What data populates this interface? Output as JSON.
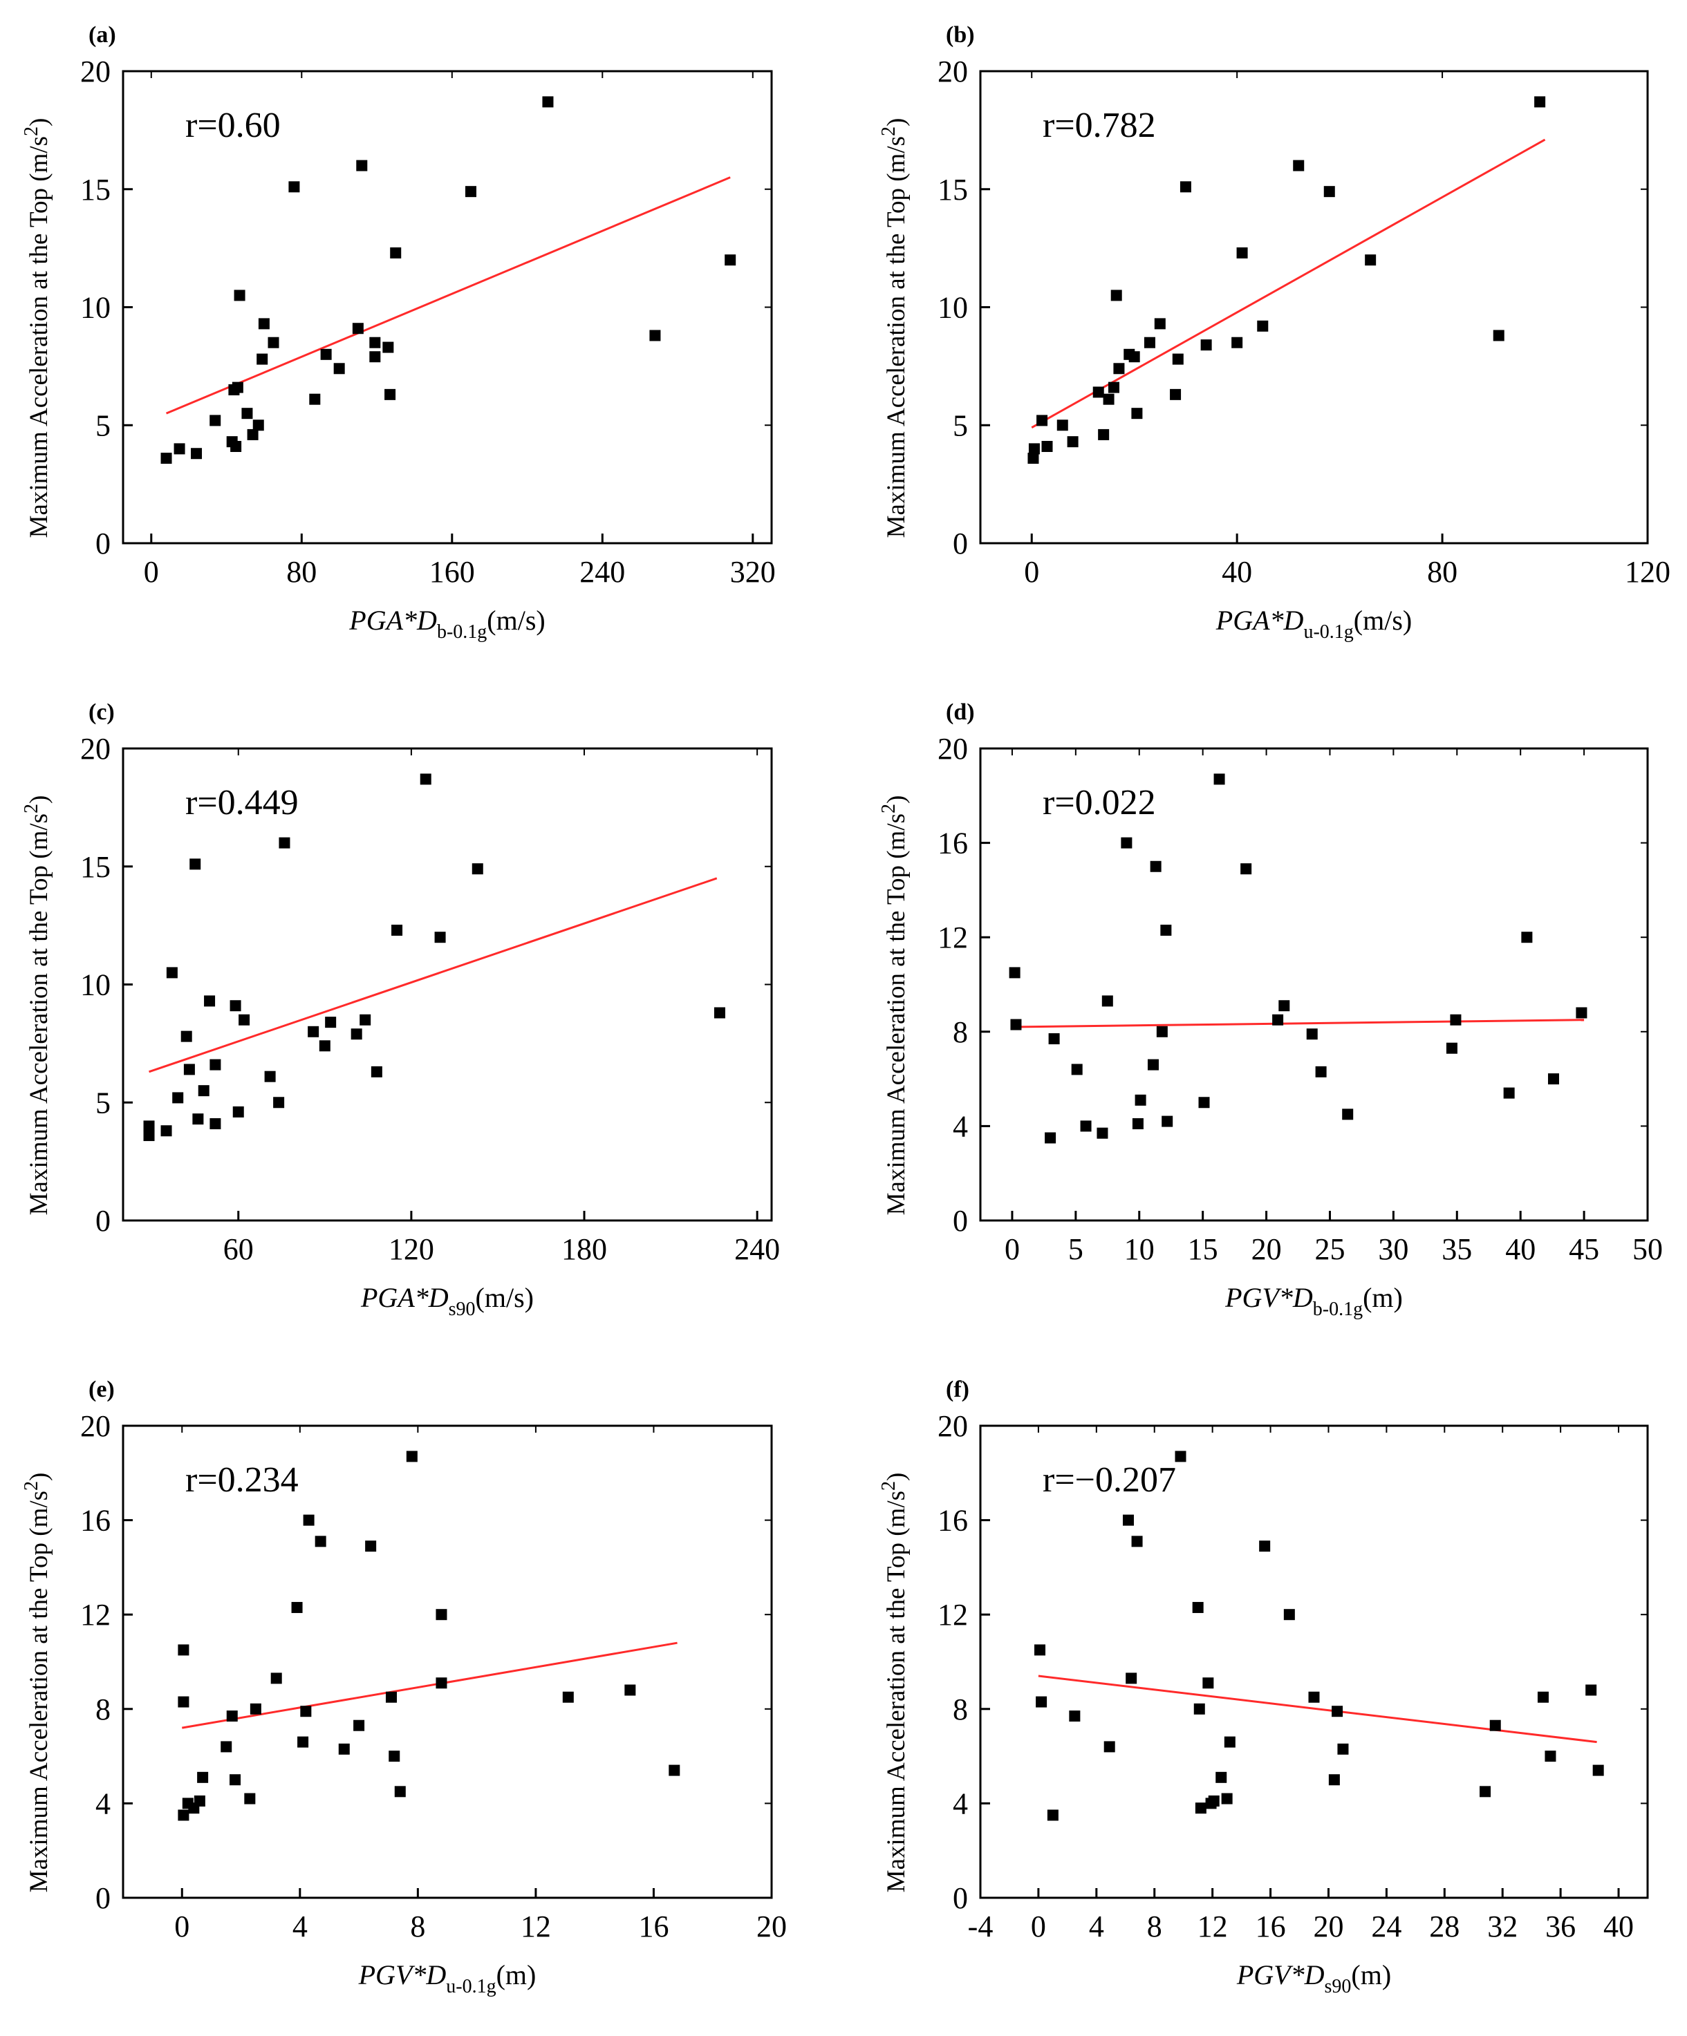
{
  "chart_data": [
    {
      "type": "scatter",
      "panel_label": "(a)",
      "annotation": "r=0.60",
      "xlabel": {
        "main": "PGA*D",
        "sub": "b-0.1g",
        "unit": "(m/s)"
      },
      "ylabel": {
        "prefix": "Maximum Acceleration at the Top (m/s",
        "sup": "2",
        "suffix": ")"
      },
      "xlim": [
        -15,
        330
      ],
      "ylim": [
        0,
        20
      ],
      "xticks": [
        0,
        80,
        160,
        240,
        320
      ],
      "xticklabels": [
        "0",
        "80",
        "160",
        "240",
        "320"
      ],
      "yticks": [
        0,
        5,
        10,
        15,
        20
      ],
      "yticklabels": [
        "0",
        "5",
        "10",
        "15",
        "20"
      ],
      "points": [
        [
          8,
          3.6
        ],
        [
          15,
          4.0
        ],
        [
          24,
          3.8
        ],
        [
          34,
          5.2
        ],
        [
          43,
          4.3
        ],
        [
          44,
          6.5
        ],
        [
          45,
          4.1
        ],
        [
          46,
          6.6
        ],
        [
          47,
          10.5
        ],
        [
          51,
          5.5
        ],
        [
          54,
          4.6
        ],
        [
          57,
          5.0
        ],
        [
          59,
          7.8
        ],
        [
          60,
          9.3
        ],
        [
          65,
          8.5
        ],
        [
          76,
          15.1
        ],
        [
          87,
          6.1
        ],
        [
          93,
          8.0
        ],
        [
          100,
          7.4
        ],
        [
          110,
          9.1
        ],
        [
          112,
          16.0
        ],
        [
          119,
          8.5
        ],
        [
          119,
          7.9
        ],
        [
          126,
          8.3
        ],
        [
          127,
          6.3
        ],
        [
          130,
          12.3
        ],
        [
          170,
          14.9
        ],
        [
          211,
          18.7
        ],
        [
          268,
          8.8
        ],
        [
          308,
          12.0
        ]
      ],
      "fit": [
        [
          8,
          5.5
        ],
        [
          308,
          15.5
        ]
      ]
    },
    {
      "type": "scatter",
      "panel_label": "(b)",
      "annotation": "r=0.782",
      "xlabel": {
        "main": "PGA*D",
        "sub": "u-0.1g",
        "unit": "(m/s)"
      },
      "ylabel": {
        "prefix": "Maximum Acceleration at the Top (m/s",
        "sup": "2",
        "suffix": ")"
      },
      "xlim": [
        -10,
        120
      ],
      "ylim": [
        0,
        20
      ],
      "xticks": [
        0,
        40,
        80,
        120
      ],
      "xticklabels": [
        "0",
        "40",
        "80",
        "120"
      ],
      "yticks": [
        0,
        5,
        10,
        15,
        20
      ],
      "yticklabels": [
        "0",
        "5",
        "10",
        "15",
        "20"
      ],
      "points": [
        [
          0.3,
          3.6
        ],
        [
          0.5,
          4.0
        ],
        [
          2,
          5.2
        ],
        [
          3,
          4.1
        ],
        [
          6,
          5.0
        ],
        [
          8,
          4.3
        ],
        [
          13,
          6.4
        ],
        [
          14,
          4.6
        ],
        [
          15,
          6.1
        ],
        [
          16,
          6.6
        ],
        [
          16.5,
          10.5
        ],
        [
          17,
          7.4
        ],
        [
          19,
          8.0
        ],
        [
          20,
          7.9
        ],
        [
          20.5,
          5.5
        ],
        [
          23,
          8.5
        ],
        [
          25,
          9.3
        ],
        [
          28,
          6.3
        ],
        [
          28.5,
          7.8
        ],
        [
          30,
          15.1
        ],
        [
          34,
          8.4
        ],
        [
          40,
          8.5
        ],
        [
          41,
          12.3
        ],
        [
          45,
          9.2
        ],
        [
          52,
          16.0
        ],
        [
          58,
          14.9
        ],
        [
          66,
          12.0
        ],
        [
          91,
          8.8
        ],
        [
          99,
          18.7
        ]
      ],
      "fit": [
        [
          0,
          4.9
        ],
        [
          100,
          17.1
        ]
      ]
    },
    {
      "type": "scatter",
      "panel_label": "(c)",
      "annotation": "r=0.449",
      "xlabel": {
        "main": "PGA*D",
        "sub": "s90",
        "unit": "(m/s)"
      },
      "ylabel": {
        "prefix": "Maximum Acceleration at the Top (m/s",
        "sup": "2",
        "suffix": ")"
      },
      "xlim": [
        20,
        245
      ],
      "ylim": [
        0,
        20
      ],
      "xticks": [
        60,
        120,
        180,
        240
      ],
      "xticklabels": [
        "60",
        "120",
        "180",
        "240"
      ],
      "yticks": [
        0,
        5,
        10,
        15,
        20
      ],
      "yticklabels": [
        "0",
        "5",
        "10",
        "15",
        "20"
      ],
      "points": [
        [
          29,
          3.6
        ],
        [
          29,
          4.0
        ],
        [
          35,
          3.8
        ],
        [
          37,
          10.5
        ],
        [
          39,
          5.2
        ],
        [
          42,
          7.8
        ],
        [
          43,
          6.4
        ],
        [
          45,
          15.1
        ],
        [
          46,
          4.3
        ],
        [
          48,
          5.5
        ],
        [
          50,
          9.3
        ],
        [
          52,
          6.6
        ],
        [
          52,
          4.1
        ],
        [
          59,
          9.1
        ],
        [
          60,
          4.6
        ],
        [
          62,
          8.5
        ],
        [
          71,
          6.1
        ],
        [
          74,
          5.0
        ],
        [
          76,
          16.0
        ],
        [
          86,
          8.0
        ],
        [
          90,
          7.4
        ],
        [
          92,
          8.4
        ],
        [
          101,
          7.9
        ],
        [
          104,
          8.5
        ],
        [
          108,
          6.3
        ],
        [
          115,
          12.3
        ],
        [
          125,
          18.7
        ],
        [
          130,
          12.0
        ],
        [
          143,
          14.9
        ],
        [
          227,
          8.8
        ]
      ],
      "fit": [
        [
          29,
          6.3
        ],
        [
          226,
          14.5
        ]
      ]
    },
    {
      "type": "scatter",
      "panel_label": "(d)",
      "annotation": "r=0.022",
      "xlabel": {
        "main": "PGV*D",
        "sub": "b-0.1g",
        "unit": "(m)"
      },
      "ylabel": {
        "prefix": "Maximum Acceleration at the Top (m/s",
        "sup": "2",
        "suffix": ")"
      },
      "xlim": [
        -2.5,
        50
      ],
      "ylim": [
        0,
        20
      ],
      "xticks": [
        0,
        5,
        10,
        15,
        20,
        25,
        30,
        35,
        40,
        45,
        50
      ],
      "xticklabels": [
        "0",
        "5",
        "10",
        "15",
        "20",
        "25",
        "30",
        "35",
        "40",
        "45",
        "50"
      ],
      "yticks": [
        0,
        4,
        8,
        12,
        16,
        20
      ],
      "yticklabels": [
        "0",
        "4",
        "8",
        "12",
        "16",
        "20"
      ],
      "points": [
        [
          0.2,
          10.5
        ],
        [
          0.3,
          8.3
        ],
        [
          3.0,
          3.5
        ],
        [
          3.3,
          7.7
        ],
        [
          5.1,
          6.4
        ],
        [
          5.8,
          4.0
        ],
        [
          7.1,
          3.7
        ],
        [
          7.5,
          9.3
        ],
        [
          9.0,
          16.0
        ],
        [
          9.9,
          4.1
        ],
        [
          10.1,
          5.1
        ],
        [
          11.1,
          6.6
        ],
        [
          11.3,
          15.0
        ],
        [
          11.8,
          8.0
        ],
        [
          12.1,
          12.3
        ],
        [
          12.2,
          4.2
        ],
        [
          15.1,
          5.0
        ],
        [
          16.3,
          18.7
        ],
        [
          18.4,
          14.9
        ],
        [
          20.9,
          8.5
        ],
        [
          21.4,
          9.1
        ],
        [
          23.6,
          7.9
        ],
        [
          24.3,
          6.3
        ],
        [
          26.4,
          4.5
        ],
        [
          34.6,
          7.3
        ],
        [
          34.9,
          8.5
        ],
        [
          39.1,
          5.4
        ],
        [
          40.5,
          12.0
        ],
        [
          42.6,
          6.0
        ],
        [
          44.8,
          8.8
        ]
      ],
      "fit": [
        [
          0,
          8.2
        ],
        [
          45,
          8.5
        ]
      ]
    },
    {
      "type": "scatter",
      "panel_label": "(e)",
      "annotation": "r=0.234",
      "xlabel": {
        "main": "PGV*D",
        "sub": "u-0.1g",
        "unit": "(m)"
      },
      "ylabel": {
        "prefix": "Maximum Acceleration at the Top (m/s",
        "sup": "2",
        "suffix": ")"
      },
      "xlim": [
        -2,
        20
      ],
      "ylim": [
        0,
        20
      ],
      "xticks": [
        0,
        4,
        8,
        12,
        16,
        20
      ],
      "xticklabels": [
        "0",
        "4",
        "8",
        "12",
        "16",
        "20"
      ],
      "yticks": [
        0,
        4,
        8,
        12,
        16,
        20
      ],
      "yticklabels": [
        "0",
        "4",
        "8",
        "12",
        "16",
        "20"
      ],
      "points": [
        [
          0.05,
          10.5
        ],
        [
          0.05,
          8.3
        ],
        [
          0.05,
          3.5
        ],
        [
          0.2,
          4.0
        ],
        [
          0.4,
          3.8
        ],
        [
          0.6,
          4.1
        ],
        [
          0.7,
          5.1
        ],
        [
          1.5,
          6.4
        ],
        [
          1.7,
          7.7
        ],
        [
          1.8,
          5.0
        ],
        [
          2.3,
          4.2
        ],
        [
          2.5,
          8.0
        ],
        [
          3.2,
          9.3
        ],
        [
          3.9,
          12.3
        ],
        [
          4.1,
          6.6
        ],
        [
          4.2,
          7.9
        ],
        [
          4.3,
          16.0
        ],
        [
          4.7,
          15.1
        ],
        [
          5.5,
          6.3
        ],
        [
          6.0,
          7.3
        ],
        [
          6.4,
          14.9
        ],
        [
          7.1,
          8.5
        ],
        [
          7.2,
          6.0
        ],
        [
          7.4,
          4.5
        ],
        [
          7.8,
          18.7
        ],
        [
          8.8,
          12.0
        ],
        [
          8.8,
          9.1
        ],
        [
          13.1,
          8.5
        ],
        [
          15.2,
          8.8
        ],
        [
          16.7,
          5.4
        ]
      ],
      "fit": [
        [
          0,
          7.2
        ],
        [
          16.8,
          10.8
        ]
      ]
    },
    {
      "type": "scatter",
      "panel_label": "(f)",
      "annotation": "r=−0.207",
      "xlabel": {
        "main": "PGV*D",
        "sub": "s90",
        "unit": "(m)"
      },
      "ylabel": {
        "prefix": "Maximum Acceleration at the Top (m/s",
        "sup": "2",
        "suffix": ")"
      },
      "xlim": [
        -4,
        42
      ],
      "ylim": [
        0,
        20
      ],
      "xticks": [
        -4,
        0,
        4,
        8,
        12,
        16,
        20,
        24,
        28,
        32,
        36,
        40
      ],
      "xticklabels": [
        "-4",
        "0",
        "4",
        "8",
        "12",
        "16",
        "20",
        "24",
        "28",
        "32",
        "36",
        "40"
      ],
      "yticks": [
        0,
        4,
        8,
        12,
        16,
        20
      ],
      "yticklabels": [
        "0",
        "4",
        "8",
        "12",
        "16",
        "20"
      ],
      "points": [
        [
          0.1,
          10.5
        ],
        [
          0.2,
          8.3
        ],
        [
          1.0,
          3.5
        ],
        [
          2.5,
          7.7
        ],
        [
          4.9,
          6.4
        ],
        [
          6.2,
          16.0
        ],
        [
          6.4,
          9.3
        ],
        [
          6.8,
          15.1
        ],
        [
          9.8,
          18.7
        ],
        [
          11.0,
          12.3
        ],
        [
          11.1,
          8.0
        ],
        [
          11.2,
          3.8
        ],
        [
          11.7,
          9.1
        ],
        [
          11.9,
          4.0
        ],
        [
          12.1,
          4.1
        ],
        [
          12.6,
          5.1
        ],
        [
          13.0,
          4.2
        ],
        [
          13.2,
          6.6
        ],
        [
          15.6,
          14.9
        ],
        [
          17.3,
          12.0
        ],
        [
          19.0,
          8.5
        ],
        [
          20.4,
          5.0
        ],
        [
          20.6,
          7.9
        ],
        [
          21.0,
          6.3
        ],
        [
          30.8,
          4.5
        ],
        [
          31.5,
          7.3
        ],
        [
          34.8,
          8.5
        ],
        [
          35.3,
          6.0
        ],
        [
          38.1,
          8.8
        ],
        [
          38.6,
          5.4
        ]
      ],
      "fit": [
        [
          0,
          9.4
        ],
        [
          38.5,
          6.6
        ]
      ]
    }
  ]
}
